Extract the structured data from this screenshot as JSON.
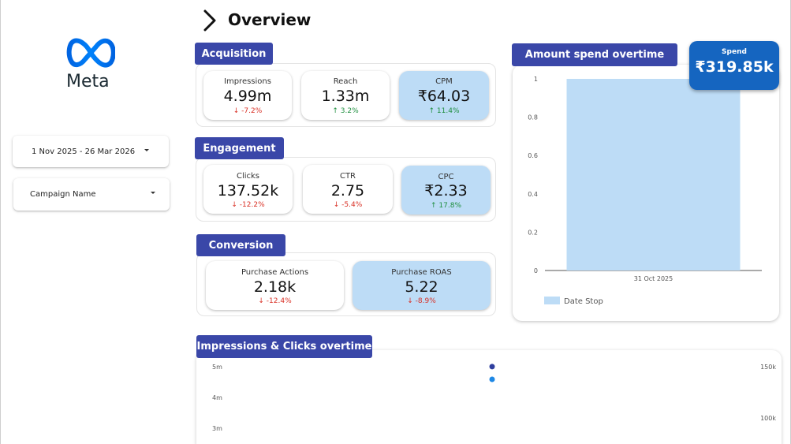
{
  "header": {
    "title": "Overview"
  },
  "logo": {
    "text": "Meta",
    "brand_color": "#0866ff"
  },
  "filters": {
    "date_range": "1 Nov 2025 - 26 Mar 2026",
    "campaign": "Campaign Name"
  },
  "sections": {
    "acquisition": {
      "title": "Acquisition",
      "cards": [
        {
          "label": "Impressions",
          "value": "4.99m",
          "change": "-7.2%",
          "direction": "down"
        },
        {
          "label": "Reach",
          "value": "1.33m",
          "change": "3.2%",
          "direction": "up"
        },
        {
          "label": "CPM",
          "value": "₹64.03",
          "change": "11.4%",
          "direction": "up"
        }
      ]
    },
    "engagement": {
      "title": "Engagement",
      "cards": [
        {
          "label": "Clicks",
          "value": "137.52k",
          "change": "-12.2%",
          "direction": "down"
        },
        {
          "label": "CTR",
          "value": "2.75",
          "change": "-5.4%",
          "direction": "down"
        },
        {
          "label": "CPC",
          "value": "₹2.33",
          "change": "17.8%",
          "direction": "up"
        }
      ]
    },
    "conversion": {
      "title": "Conversion",
      "cards": [
        {
          "label": "Purchase Actions",
          "value": "2.18k",
          "change": "-12.4%",
          "direction": "down"
        },
        {
          "label": "Purchase ROAS",
          "value": "5.22",
          "change": "-8.9%",
          "direction": "down"
        }
      ]
    }
  },
  "spend_chart": {
    "title": "Amount spend overtime",
    "badge_label": "Spend",
    "badge_value": "₹319.85k"
  },
  "trend_chart": {
    "title": "Impressions & Clicks overtime"
  },
  "colors": {
    "section_header": "#3a47a8",
    "highlight_card": "#bddcf6",
    "bar": "#bddcf6",
    "badge": "#1565c0",
    "down": "#d93025",
    "up": "#1e8e3e",
    "series_impressions": "#2f3f9e",
    "series_clicks": "#1e88e5"
  },
  "chart_data": [
    {
      "type": "bar",
      "title": "Amount spend overtime",
      "categories": [
        "31 Oct 2025"
      ],
      "series": [
        {
          "name": "Date Stop",
          "values": [
            1
          ]
        }
      ],
      "yticks": [
        "0",
        "0.2",
        "0.4",
        "0.6",
        "0.8",
        "1"
      ],
      "ylim": [
        0,
        1
      ],
      "legend": "bottom-left",
      "grid": false
    },
    {
      "type": "scatter",
      "title": "Impressions & Clicks overtime",
      "y_left_ticks": [
        "3m",
        "4m",
        "5m"
      ],
      "y_right_ticks": [
        "100k",
        "150k"
      ],
      "y_left_lim": [
        3000000,
        5000000
      ],
      "y_right_lim": [
        100000,
        150000
      ],
      "series": [
        {
          "values": [
            4990000
          ],
          "axis": "left",
          "color": "#2f3f9e"
        },
        {
          "values": [
            137520
          ],
          "axis": "right",
          "color": "#1e88e5"
        }
      ]
    }
  ]
}
